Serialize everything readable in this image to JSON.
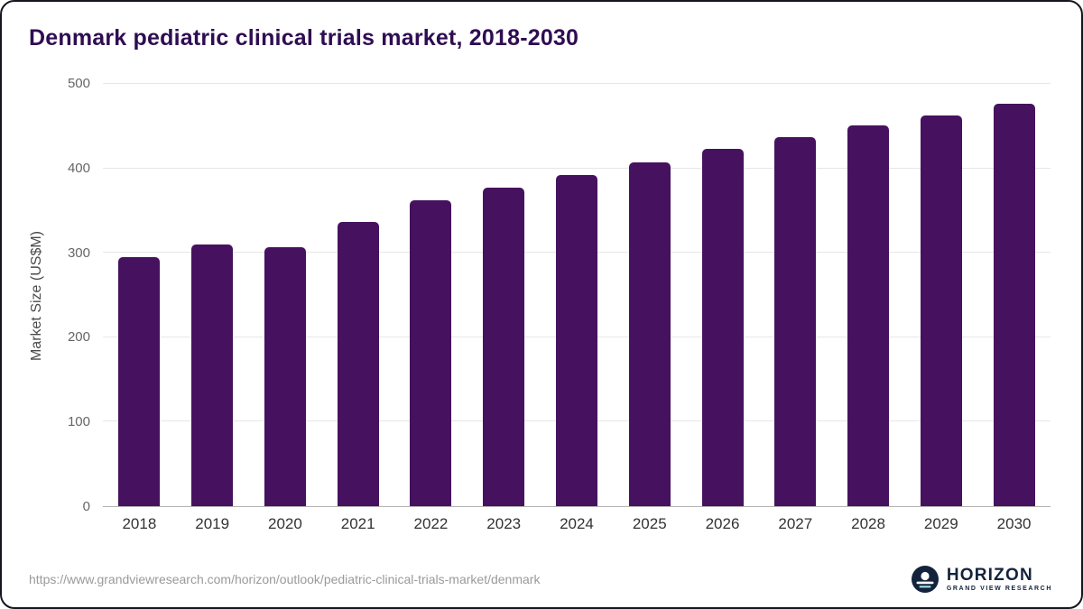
{
  "chart_data": {
    "type": "bar",
    "title": "Denmark pediatric clinical trials market, 2018-2030",
    "title_color": "#2f0d52",
    "ylabel": "Market Size (US$M)",
    "categories": [
      "2018",
      "2019",
      "2020",
      "2021",
      "2022",
      "2023",
      "2024",
      "2025",
      "2026",
      "2027",
      "2028",
      "2029",
      "2030"
    ],
    "values": [
      295,
      310,
      307,
      337,
      362,
      377,
      392,
      407,
      423,
      437,
      451,
      463,
      476
    ],
    "ylim": [
      0,
      500
    ],
    "yticks": [
      0,
      100,
      200,
      300,
      400,
      500
    ],
    "bar_color": "#46125f",
    "grid": true,
    "legend_position": "none"
  },
  "footer": {
    "source_url": "https://www.grandviewresearch.com/horizon/outlook/pediatric-clinical-trials-market/denmark",
    "logo": {
      "brand": "HORIZON",
      "sub_brand": "GRAND VIEW RESEARCH"
    }
  }
}
